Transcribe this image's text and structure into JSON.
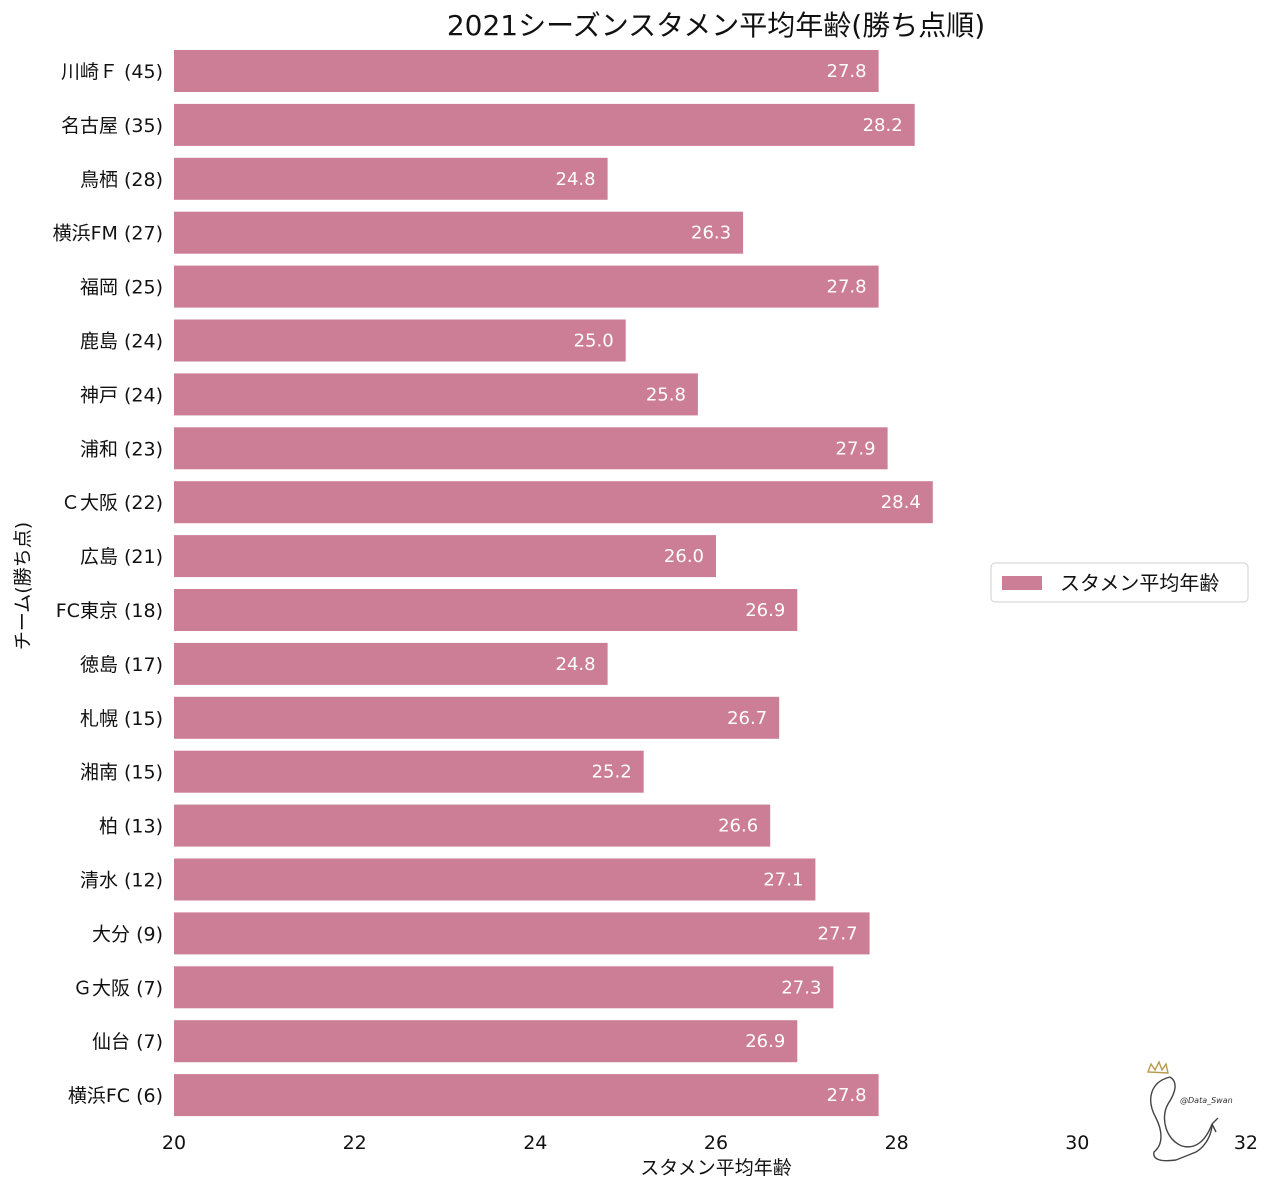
{
  "chart_data": {
    "type": "bar",
    "orientation": "horizontal",
    "title": "2021シーズンスタメン平均年齢(勝ち点順)",
    "xlabel": "スタメン平均年齢",
    "ylabel": "チーム(勝ち点)",
    "xlim": [
      20,
      32
    ],
    "xticks": [
      "20",
      "22",
      "24",
      "26",
      "28",
      "30",
      "32"
    ],
    "grid": false,
    "legend_position": "center-right",
    "bar_color": "#cc7e96",
    "categories": [
      "川崎Ｆ (45)",
      "名古屋 (35)",
      "鳥栖 (28)",
      "横浜FM (27)",
      "福岡 (25)",
      "鹿島 (24)",
      "神戸 (24)",
      "浦和 (23)",
      "Ｃ大阪 (22)",
      "広島 (21)",
      "FC東京 (18)",
      "徳島 (17)",
      "札幌 (15)",
      "湘南 (15)",
      "柏 (13)",
      "清水 (12)",
      "大分 (9)",
      "Ｇ大阪 (7)",
      "仙台 (7)",
      "横浜FC (6)"
    ],
    "series": [
      {
        "name": "スタメン平均年齢",
        "values": [
          27.8,
          28.2,
          24.8,
          26.3,
          27.8,
          25.0,
          25.8,
          27.9,
          28.4,
          26.0,
          26.9,
          24.8,
          26.7,
          25.2,
          26.6,
          27.1,
          27.7,
          27.3,
          26.9,
          27.8
        ],
        "labels": [
          "27.8",
          "28.2",
          "24.8",
          "26.3",
          "27.8",
          "25.0",
          "25.8",
          "27.9",
          "28.4",
          "26.0",
          "26.9",
          "24.8",
          "26.7",
          "25.2",
          "26.6",
          "27.1",
          "27.7",
          "27.3",
          "26.9",
          "27.8"
        ]
      }
    ]
  },
  "watermark": {
    "text": "@Data_Swan",
    "icon": "swan-crown-icon"
  }
}
